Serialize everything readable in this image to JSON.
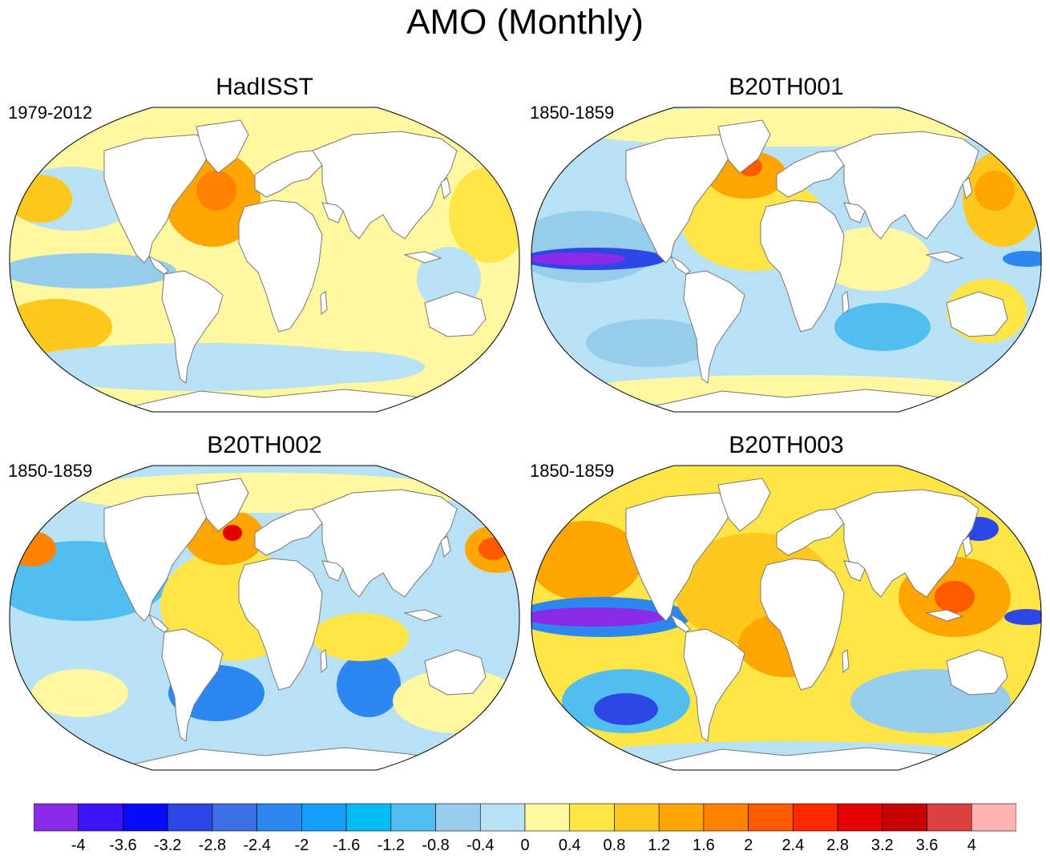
{
  "figure": {
    "title": "AMO (Monthly)"
  },
  "panels": [
    {
      "id": "hadisst",
      "title": "HadISST",
      "period": "1979-2012"
    },
    {
      "id": "b20th001",
      "title": "B20TH001",
      "period": "1850-1859"
    },
    {
      "id": "b20th002",
      "title": "B20TH002",
      "period": "1850-1859"
    },
    {
      "id": "b20th003",
      "title": "B20TH003",
      "period": "1850-1859"
    }
  ],
  "colorbar": {
    "labels": [
      "-4",
      "-3.6",
      "-3.2",
      "-2.8",
      "-2.4",
      "-2",
      "-1.6",
      "-1.2",
      "-0.8",
      "-0.4",
      "0",
      "0.4",
      "0.8",
      "1.2",
      "1.6",
      "2",
      "2.4",
      "2.8",
      "3.2",
      "3.6",
      "4"
    ],
    "colors": [
      "#8a2be8",
      "#3c14f5",
      "#0a0afa",
      "#2d46e6",
      "#3c6ee6",
      "#2d87f0",
      "#14a0fa",
      "#00bef5",
      "#50bef0",
      "#96cdec",
      "#b9e1f5",
      "#fff8a0",
      "#ffe646",
      "#ffc81e",
      "#ffa500",
      "#ff8200",
      "#ff5a00",
      "#ff2800",
      "#e60000",
      "#c80000",
      "#dc4141",
      "#ffb4b4"
    ]
  },
  "colors": {
    "land": "#ffffff",
    "coast": "#777777",
    "border": "#000000"
  }
}
